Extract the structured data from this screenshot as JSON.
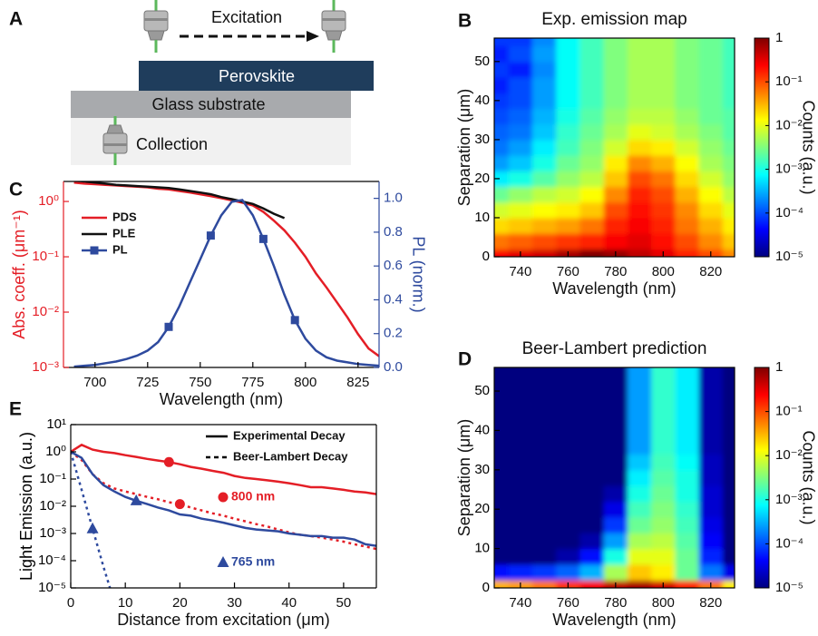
{
  "diagram": {
    "panel": "A",
    "excitation": "Excitation",
    "layers": [
      "Perovskite",
      "Glass substrate"
    ],
    "collection": "Collection"
  },
  "chart_data": [
    {
      "type": "line",
      "panel": "C",
      "xlabel": "Wavelength (nm)",
      "ylabel": "Abs. coeff. (μm⁻¹)",
      "y2label": "PL (norm.)",
      "ycolor": "#e41e26",
      "y2color": "#2e4a9e",
      "ylog": true,
      "xlim": [
        685,
        835
      ],
      "ylim": [
        0.001,
        2.3
      ],
      "y2lim": [
        0,
        1.1
      ],
      "xticks": [
        700,
        725,
        750,
        775,
        800,
        825
      ],
      "yticks": [
        {
          "value": 0.001,
          "label": "10⁻³"
        },
        {
          "value": 0.01,
          "label": "10⁻²"
        },
        {
          "value": 0.1,
          "label": "10⁻¹"
        },
        {
          "value": 1,
          "label": "10⁰"
        }
      ],
      "y2ticks": [
        {
          "value": 0,
          "label": "0.0"
        },
        0.2,
        0.4,
        0.6,
        0.8,
        {
          "value": 1,
          "label": "1.0"
        }
      ],
      "x": [
        690,
        695,
        700,
        705,
        710,
        715,
        720,
        725,
        730,
        735,
        740,
        745,
        750,
        755,
        760,
        765,
        770,
        775,
        780,
        785,
        790,
        795,
        800,
        805,
        810,
        815,
        820,
        825,
        830,
        835
      ],
      "series": [
        {
          "name": "PDS",
          "color": "#e41e26",
          "values": [
            2.2,
            2.1,
            2.05,
            2.0,
            1.95,
            1.9,
            1.85,
            1.8,
            1.7,
            1.65,
            1.55,
            1.45,
            1.35,
            1.25,
            1.15,
            1.05,
            0.95,
            0.85,
            0.65,
            0.45,
            0.3,
            0.18,
            0.1,
            0.05,
            0.028,
            0.015,
            0.008,
            0.004,
            0.0022,
            0.0016
          ]
        },
        {
          "name": "PLE",
          "color": "#111111",
          "values": [
            2.4,
            2.3,
            2.2,
            2.1,
            2.0,
            1.95,
            1.9,
            1.85,
            1.8,
            1.75,
            1.65,
            1.55,
            1.45,
            1.35,
            1.2,
            1.1,
            1.0,
            0.9,
            0.75,
            0.6,
            0.5,
            null,
            null,
            null,
            null,
            null,
            null,
            null,
            null,
            null
          ]
        },
        {
          "name": "PL",
          "color": "#2e4a9e",
          "axis": "y2",
          "marker": "square",
          "values": [
            0.005,
            0.01,
            0.015,
            0.025,
            0.035,
            0.05,
            0.07,
            0.1,
            0.15,
            0.24,
            0.36,
            0.5,
            0.64,
            0.78,
            0.9,
            0.98,
            0.99,
            0.9,
            0.76,
            0.6,
            0.43,
            0.28,
            0.17,
            0.1,
            0.06,
            0.04,
            0.03,
            0.02,
            0.015,
            0.01
          ]
        }
      ]
    },
    {
      "type": "line",
      "panel": "E",
      "xlabel": "Distance from excitation (μm)",
      "ylabel": "Light Emission (a.u.)",
      "ylog": true,
      "xlim": [
        0,
        56
      ],
      "ylim": [
        1e-05,
        10
      ],
      "xticks": [
        0,
        10,
        20,
        30,
        40,
        50
      ],
      "yticks": [
        {
          "value": 1e-05,
          "label": "10⁻⁵"
        },
        {
          "value": 0.0001,
          "label": "10⁻⁴"
        },
        {
          "value": 0.001,
          "label": "10⁻³"
        },
        {
          "value": 0.01,
          "label": "10⁻²"
        },
        {
          "value": 0.1,
          "label": "10⁻¹"
        },
        {
          "value": 1,
          "label": "10⁰"
        },
        {
          "value": 10,
          "label": "10¹"
        }
      ],
      "x": [
        0,
        2,
        4,
        6,
        8,
        10,
        12,
        14,
        16,
        18,
        20,
        22,
        24,
        26,
        28,
        30,
        32,
        34,
        36,
        38,
        40,
        42,
        44,
        46,
        48,
        50,
        52,
        54,
        56
      ],
      "series": [
        {
          "color": "#e41e26",
          "dash": false,
          "marker": "circle",
          "values": [
            1.0,
            1.8,
            1.2,
            1.0,
            0.9,
            0.75,
            0.65,
            0.55,
            0.48,
            0.42,
            0.35,
            0.28,
            0.24,
            0.2,
            0.17,
            0.13,
            0.11,
            0.1,
            0.09,
            0.08,
            0.07,
            0.06,
            0.05,
            0.05,
            0.045,
            0.04,
            0.035,
            0.032,
            0.028
          ]
        },
        {
          "color": "#e41e26",
          "dash": true,
          "marker": "circle",
          "values": [
            1.0,
            0.5,
            0.15,
            0.07,
            0.045,
            0.035,
            0.028,
            0.022,
            0.018,
            0.014,
            0.012,
            0.009,
            0.007,
            0.0055,
            0.0045,
            0.0035,
            0.0028,
            0.0022,
            0.0018,
            0.0014,
            0.0011,
            0.0009,
            0.0008,
            0.0007,
            0.0006,
            0.0005,
            0.0004,
            0.00033,
            0.00027
          ]
        },
        {
          "color": "#2e4a9e",
          "dash": false,
          "marker": "triangle",
          "values": [
            1.0,
            0.6,
            0.15,
            0.06,
            0.035,
            0.022,
            0.016,
            0.012,
            0.009,
            0.007,
            0.005,
            0.0045,
            0.0035,
            0.003,
            0.0025,
            0.002,
            0.0016,
            0.0014,
            0.0013,
            0.0012,
            0.001,
            0.0009,
            0.0008,
            0.0008,
            0.0007,
            0.0007,
            0.0006,
            0.0004,
            0.00035
          ]
        },
        {
          "color": "#2e4a9e",
          "dash": true,
          "marker": "triangle",
          "values": [
            1.0,
            0.04,
            0.0015,
            6e-05,
            3e-06,
            null,
            null,
            null,
            null,
            null,
            null,
            null,
            null,
            null,
            null,
            null,
            null,
            null,
            null,
            null,
            null,
            null,
            null,
            null,
            null,
            null,
            null,
            null,
            null
          ]
        }
      ],
      "legend": [
        {
          "name": "Experimental Decay",
          "dash": false
        },
        {
          "name": "Beer-Lambert Decay",
          "dash": true
        }
      ],
      "annotations": [
        {
          "text": "800 nm",
          "color": "#e41e26",
          "marker": "circle"
        },
        {
          "text": "765 nm",
          "color": "#2e4a9e",
          "marker": "triangle"
        }
      ]
    },
    {
      "type": "heatmap",
      "panel": "B",
      "title": "Exp. emission map",
      "xlabel": "Wavelength (nm)",
      "ylabel": "Separation (μm)",
      "zlabel": "Counts (a.u.)",
      "colormap": "jet",
      "zlog": true,
      "xlim": [
        729,
        830
      ],
      "ylim": [
        0,
        56
      ],
      "zlim": [
        1e-05,
        1
      ],
      "xticks": [
        740,
        760,
        780,
        800,
        820
      ],
      "yticks": [
        0,
        10,
        20,
        30,
        40,
        50
      ],
      "zticks": [
        {
          "value": 1e-05,
          "label": "10⁻⁵"
        },
        {
          "value": 0.0001,
          "label": "10⁻⁴"
        },
        {
          "value": 0.001,
          "label": "10⁻³"
        },
        {
          "value": 0.01,
          "label": "10⁻²"
        },
        {
          "value": 0.1,
          "label": "10⁻¹"
        },
        1
      ],
      "x": [
        730,
        740,
        750,
        760,
        770,
        780,
        790,
        800,
        810,
        820,
        830
      ],
      "y": [
        0,
        4,
        8,
        12,
        16,
        20,
        24,
        28,
        32,
        36,
        40,
        44,
        48,
        52,
        56
      ],
      "z": [
        [
          0.25,
          0.32,
          0.4,
          0.63,
          1,
          0.79,
          0.5,
          0.32,
          0.16,
          0.1,
          0.05
        ],
        [
          0.063,
          0.079,
          0.1,
          0.13,
          0.16,
          0.25,
          0.32,
          0.2,
          0.1,
          0.05,
          0.025
        ],
        [
          0.02,
          0.025,
          0.032,
          0.04,
          0.063,
          0.16,
          0.25,
          0.16,
          0.063,
          0.032,
          0.016
        ],
        [
          0.008,
          0.01,
          0.013,
          0.016,
          0.025,
          0.1,
          0.2,
          0.13,
          0.05,
          0.02,
          0.01
        ],
        [
          0.0025,
          0.004,
          0.0063,
          0.008,
          0.013,
          0.05,
          0.16,
          0.1,
          0.032,
          0.013,
          0.0063
        ],
        [
          0.00063,
          0.001,
          0.002,
          0.004,
          0.0063,
          0.025,
          0.1,
          0.063,
          0.02,
          0.008,
          0.004
        ],
        [
          0.00025,
          0.0004,
          0.001,
          0.0025,
          0.004,
          0.016,
          0.05,
          0.032,
          0.013,
          0.005,
          0.0032
        ],
        [
          0.00016,
          0.00025,
          0.00063,
          0.0016,
          0.0032,
          0.008,
          0.02,
          0.016,
          0.008,
          0.004,
          0.0025
        ],
        [
          0.00013,
          0.00016,
          0.0004,
          0.0013,
          0.0025,
          0.005,
          0.01,
          0.008,
          0.005,
          0.0032,
          0.002
        ],
        [
          0.0001,
          0.00013,
          0.00032,
          0.001,
          0.002,
          0.004,
          0.0063,
          0.0063,
          0.004,
          0.0025,
          0.002
        ],
        [
          8e-05,
          0.0001,
          0.00025,
          0.0008,
          0.0016,
          0.0032,
          0.005,
          0.005,
          0.0032,
          0.0025,
          0.0016
        ],
        [
          6e-05,
          0.0001,
          0.00025,
          0.0008,
          0.0016,
          0.0032,
          0.005,
          0.005,
          0.0032,
          0.0025,
          0.0016
        ],
        [
          8e-05,
          6e-05,
          0.0002,
          0.0008,
          0.0016,
          0.0032,
          0.005,
          0.005,
          0.0032,
          0.0025,
          0.0016
        ],
        [
          6e-05,
          0.0001,
          0.00025,
          0.0008,
          0.0016,
          0.0032,
          0.005,
          0.005,
          0.0032,
          0.0025,
          0.0016
        ],
        [
          8e-05,
          8e-05,
          0.0002,
          0.0008,
          0.0016,
          0.0032,
          0.005,
          0.005,
          0.0032,
          0.0025,
          0.0016
        ]
      ]
    },
    {
      "type": "heatmap",
      "panel": "D",
      "title": "Beer-Lambert prediction",
      "xlabel": "Wavelength (nm)",
      "ylabel": "Separation (μm)",
      "zlabel": "Counts (a.u.)",
      "colormap": "jet",
      "zlog": true,
      "xlim": [
        729,
        830
      ],
      "ylim": [
        0,
        56
      ],
      "zlim": [
        1e-05,
        1
      ],
      "xticks": [
        740,
        760,
        780,
        800,
        820
      ],
      "yticks": [
        0,
        10,
        20,
        30,
        40,
        50
      ],
      "zticks": [
        {
          "value": 1e-05,
          "label": "10⁻⁵"
        },
        {
          "value": 0.0001,
          "label": "10⁻⁴"
        },
        {
          "value": 0.001,
          "label": "10⁻³"
        },
        {
          "value": 0.01,
          "label": "10⁻²"
        },
        {
          "value": 0.1,
          "label": "10⁻¹"
        },
        1
      ],
      "x": [
        730,
        740,
        750,
        760,
        770,
        780,
        790,
        800,
        810,
        820,
        830
      ],
      "y": [
        0,
        4,
        8,
        12,
        16,
        20,
        24,
        28,
        32,
        36,
        40,
        44,
        48,
        52,
        56
      ],
      "z": [
        [
          0.032,
          0.04,
          0.063,
          0.13,
          0.25,
          0.5,
          0.63,
          0.4,
          0.16,
          0.063,
          0.016
        ],
        [
          5e-05,
          6.3e-05,
          8e-05,
          0.00013,
          0.00032,
          0.005,
          0.025,
          0.016,
          0.0025,
          0.00016,
          3.2e-05
        ],
        [
          1e-05,
          1e-05,
          1e-05,
          1.6e-05,
          5e-05,
          0.001,
          0.01,
          0.01,
          0.0025,
          6.3e-05,
          1e-05
        ],
        [
          1e-05,
          1e-05,
          1e-05,
          1e-05,
          1.6e-05,
          0.00025,
          0.005,
          0.0063,
          0.002,
          4e-05,
          1e-05
        ],
        [
          1e-05,
          1e-05,
          1e-05,
          1e-05,
          1e-05,
          8e-05,
          0.0025,
          0.004,
          0.0016,
          3.2e-05,
          1e-05
        ],
        [
          1e-05,
          1e-05,
          1e-05,
          1e-05,
          1e-05,
          3.2e-05,
          0.0016,
          0.0032,
          0.0013,
          2.5e-05,
          1e-05
        ],
        [
          1e-05,
          1e-05,
          1e-05,
          1e-05,
          1e-05,
          1.6e-05,
          0.001,
          0.0025,
          0.001,
          2.5e-05,
          1e-05
        ],
        [
          1e-05,
          1e-05,
          1e-05,
          1e-05,
          1e-05,
          1e-05,
          0.00063,
          0.002,
          0.001,
          2e-05,
          1e-05
        ],
        [
          1e-05,
          1e-05,
          1e-05,
          1e-05,
          1e-05,
          1e-05,
          0.0004,
          0.0016,
          0.0008,
          2e-05,
          1e-05
        ],
        [
          1e-05,
          1e-05,
          1e-05,
          1e-05,
          1e-05,
          1e-05,
          0.00025,
          0.0013,
          0.00063,
          1.6e-05,
          1e-05
        ],
        [
          1e-05,
          1e-05,
          1e-05,
          1e-05,
          1e-05,
          1e-05,
          0.00025,
          0.0013,
          0.00063,
          1.6e-05,
          1e-05
        ],
        [
          1e-05,
          1e-05,
          1e-05,
          1e-05,
          1e-05,
          1e-05,
          0.00025,
          0.0013,
          0.00063,
          1.6e-05,
          1e-05
        ],
        [
          1e-05,
          1e-05,
          1e-05,
          1e-05,
          1e-05,
          1e-05,
          0.00025,
          0.0013,
          0.00063,
          1.6e-05,
          1e-05
        ],
        [
          1e-05,
          1e-05,
          1e-05,
          1e-05,
          1e-05,
          1e-05,
          0.00025,
          0.0013,
          0.00063,
          1.6e-05,
          1e-05
        ],
        [
          1e-05,
          1e-05,
          1e-05,
          1e-05,
          1e-05,
          1e-05,
          0.00025,
          0.0013,
          0.00063,
          1.6e-05,
          1e-05
        ]
      ]
    }
  ]
}
